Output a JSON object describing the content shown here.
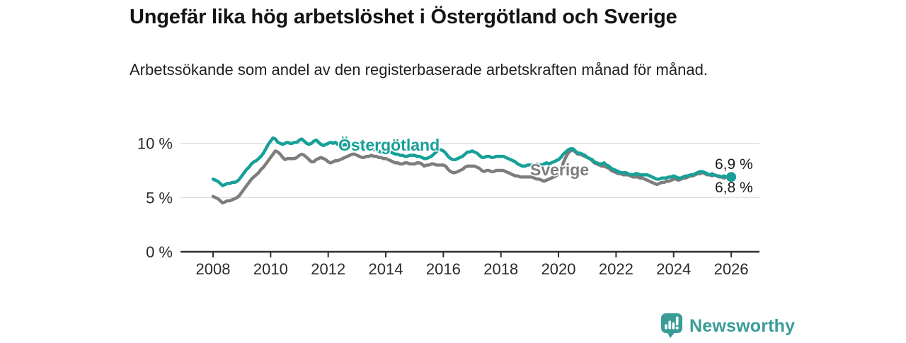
{
  "header": {
    "title": "Ungefär lika hög arbetslöshet i Östergötland och Sverige",
    "subtitle": "Arbetssökande som andel av den registerbaserade arbetskraften månad för månad."
  },
  "chart_data": {
    "type": "line",
    "title": "Ungefär lika hög arbetslöshet i Östergötland och Sverige",
    "xlabel": "",
    "ylabel": "Arbetssökande som andel av den registerbaserade arbetskraften",
    "grid": "horizontal",
    "legend_position": "inline-labels",
    "x_start_year": 2008,
    "points_per_year": 12,
    "x_range": [
      2008.0,
      2026.0
    ],
    "ylim": [
      0,
      11.5
    ],
    "y_ticks": [
      {
        "value": 0,
        "label": "0 %"
      },
      {
        "value": 5,
        "label": "5 %"
      },
      {
        "value": 10,
        "label": "10 %"
      }
    ],
    "x_ticks": [
      {
        "value": 2008,
        "label": "2008"
      },
      {
        "value": 2010,
        "label": "2010"
      },
      {
        "value": 2012,
        "label": "2012"
      },
      {
        "value": 2014,
        "label": "2014"
      },
      {
        "value": 2016,
        "label": "2016"
      },
      {
        "value": 2018,
        "label": "2018"
      },
      {
        "value": 2020,
        "label": "2020"
      },
      {
        "value": 2022,
        "label": "2022"
      },
      {
        "value": 2024,
        "label": "2024"
      },
      {
        "value": 2026,
        "label": "2026"
      }
    ],
    "series": [
      {
        "name": "Östergötland",
        "color": "#16a098",
        "end_label": "6,9 %",
        "end_value": 6.9,
        "values": [
          6.7,
          6.6,
          6.5,
          6.3,
          6.1,
          6.2,
          6.3,
          6.3,
          6.4,
          6.4,
          6.5,
          6.7,
          7.0,
          7.3,
          7.6,
          7.8,
          8.1,
          8.3,
          8.4,
          8.6,
          8.8,
          9.1,
          9.5,
          9.9,
          10.2,
          10.5,
          10.4,
          10.1,
          10.0,
          9.9,
          10.0,
          10.1,
          10.0,
          10.0,
          10.1,
          10.1,
          10.3,
          10.4,
          10.2,
          10.0,
          9.9,
          10.0,
          10.2,
          10.3,
          10.1,
          9.9,
          9.8,
          9.9,
          10.0,
          10.1,
          10.0,
          10.1,
          9.9,
          9.8,
          9.8,
          9.9,
          9.8,
          9.8,
          9.9,
          9.9,
          9.9,
          9.8,
          9.7,
          9.6,
          9.6,
          9.5,
          9.5,
          9.4,
          9.4,
          9.3,
          9.2,
          9.1,
          9.1,
          9.2,
          9.2,
          9.1,
          9.0,
          9.0,
          8.9,
          8.9,
          8.8,
          8.8,
          8.9,
          8.9,
          8.9,
          8.8,
          8.8,
          8.7,
          8.6,
          8.6,
          8.7,
          8.8,
          9.0,
          9.2,
          9.4,
          9.4,
          9.3,
          9.1,
          8.8,
          8.6,
          8.5,
          8.5,
          8.6,
          8.7,
          8.8,
          9.0,
          9.2,
          9.2,
          9.3,
          9.2,
          9.1,
          8.9,
          8.7,
          8.7,
          8.8,
          8.8,
          8.7,
          8.7,
          8.8,
          8.8,
          8.8,
          8.8,
          8.7,
          8.6,
          8.5,
          8.4,
          8.3,
          8.1,
          8.0,
          7.9,
          7.9,
          8.0,
          8.0,
          8.0,
          8.0,
          8.1,
          8.0,
          8.0,
          8.1,
          8.2,
          8.1,
          8.2,
          8.3,
          8.4,
          8.5,
          8.7,
          9.0,
          9.2,
          9.4,
          9.5,
          9.5,
          9.3,
          9.1,
          9.1,
          9.0,
          8.9,
          8.7,
          8.6,
          8.5,
          8.3,
          8.2,
          8.1,
          8.1,
          8.2,
          8.0,
          7.9,
          7.7,
          7.6,
          7.5,
          7.4,
          7.3,
          7.3,
          7.3,
          7.2,
          7.1,
          7.1,
          7.2,
          7.2,
          7.1,
          7.1,
          7.1,
          7.1,
          7.0,
          6.9,
          6.8,
          6.7,
          6.7,
          6.8,
          6.8,
          6.8,
          6.9,
          6.9,
          7.0,
          6.9,
          6.8,
          6.8,
          6.9,
          7.0,
          7.0,
          7.1,
          7.1,
          7.2,
          7.3,
          7.4,
          7.4,
          7.3,
          7.2,
          7.1,
          7.2,
          7.1,
          7.0,
          7.0,
          6.9,
          7.0,
          6.9,
          6.9,
          6.9
        ]
      },
      {
        "name": "Sverige",
        "color": "#7d7d7d",
        "end_label": "6,8 %",
        "end_value": 6.8,
        "values": [
          5.1,
          5.0,
          4.9,
          4.7,
          4.5,
          4.6,
          4.7,
          4.7,
          4.8,
          4.9,
          5.0,
          5.2,
          5.5,
          5.8,
          6.1,
          6.4,
          6.7,
          6.9,
          7.1,
          7.3,
          7.6,
          7.8,
          8.1,
          8.4,
          8.7,
          9.0,
          9.3,
          9.2,
          9.0,
          8.7,
          8.5,
          8.6,
          8.6,
          8.6,
          8.6,
          8.7,
          8.9,
          9.0,
          8.9,
          8.7,
          8.5,
          8.3,
          8.3,
          8.5,
          8.6,
          8.7,
          8.6,
          8.5,
          8.3,
          8.2,
          8.3,
          8.4,
          8.4,
          8.5,
          8.6,
          8.7,
          8.8,
          8.9,
          9.0,
          9.0,
          8.9,
          8.8,
          8.7,
          8.7,
          8.8,
          8.8,
          8.9,
          8.8,
          8.8,
          8.7,
          8.7,
          8.6,
          8.6,
          8.5,
          8.4,
          8.3,
          8.2,
          8.2,
          8.1,
          8.1,
          8.2,
          8.2,
          8.1,
          8.1,
          8.1,
          8.2,
          8.2,
          8.1,
          7.9,
          8.0,
          8.0,
          8.1,
          8.1,
          8.0,
          8.0,
          8.0,
          8.0,
          7.9,
          7.6,
          7.4,
          7.3,
          7.3,
          7.4,
          7.5,
          7.6,
          7.8,
          7.9,
          7.9,
          7.9,
          7.9,
          7.8,
          7.7,
          7.5,
          7.4,
          7.5,
          7.5,
          7.4,
          7.4,
          7.5,
          7.5,
          7.5,
          7.5,
          7.4,
          7.3,
          7.2,
          7.1,
          7.0,
          7.0,
          6.9,
          6.9,
          6.9,
          6.9,
          6.9,
          6.9,
          6.8,
          6.7,
          6.7,
          6.6,
          6.5,
          6.6,
          6.7,
          6.8,
          6.9,
          7.0,
          7.2,
          7.5,
          8.2,
          8.7,
          9.1,
          9.3,
          9.4,
          9.2,
          9.0,
          9.0,
          8.9,
          8.8,
          8.7,
          8.6,
          8.4,
          8.2,
          8.1,
          8.0,
          7.9,
          7.9,
          7.8,
          7.7,
          7.5,
          7.4,
          7.3,
          7.2,
          7.2,
          7.1,
          7.1,
          7.1,
          7.0,
          6.9,
          6.9,
          6.9,
          6.8,
          6.8,
          6.7,
          6.6,
          6.5,
          6.4,
          6.3,
          6.2,
          6.3,
          6.4,
          6.4,
          6.5,
          6.5,
          6.6,
          6.7,
          6.7,
          6.6,
          6.7,
          6.8,
          6.8,
          6.9,
          7.0,
          7.0,
          7.1,
          7.2,
          7.2,
          7.3,
          7.2,
          7.1,
          7.1,
          7.0,
          7.1,
          7.0,
          6.9,
          6.9,
          6.8,
          6.9,
          6.8,
          6.8
        ]
      }
    ],
    "colors": {
      "grid": "#dedede",
      "axis": "#2f2f2f",
      "accent_teal": "#16a098",
      "neutral_gray": "#7d7d7d"
    }
  },
  "footer": {
    "brand": "Newsworthy"
  }
}
